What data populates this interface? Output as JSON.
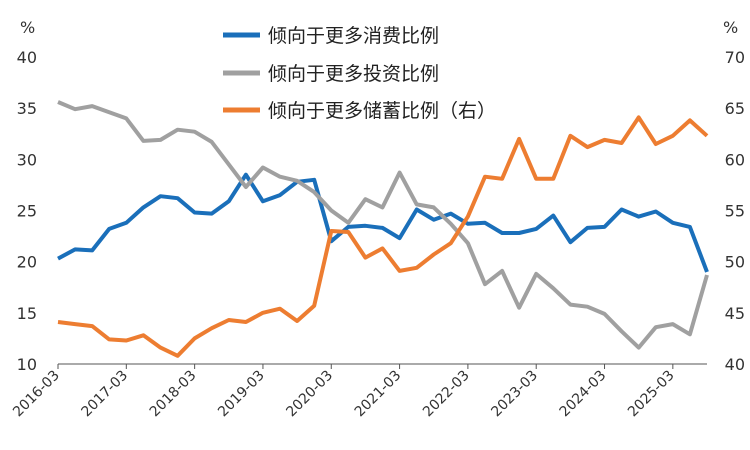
{
  "chart_data": {
    "type": "line",
    "title": "",
    "left_axis": {
      "unit": "%",
      "ylim": [
        10,
        40
      ],
      "ticks": [
        10,
        15,
        20,
        25,
        30,
        35,
        40
      ]
    },
    "right_axis": {
      "unit": "%",
      "ylim": [
        40,
        70
      ],
      "ticks": [
        40,
        45,
        50,
        55,
        60,
        65,
        70
      ]
    },
    "x_ticks": [
      "2016-03",
      "2017-03",
      "2018-03",
      "2019-03",
      "2020-03",
      "2021-03",
      "2022-03",
      "2023-03",
      "2024-03",
      "2025-03"
    ],
    "x_start": "2016-03",
    "x_end": "2025-12",
    "grid": false,
    "legend_position": "top-center",
    "series": [
      {
        "name": "倾向于更多消费比例",
        "axis": "left",
        "color": "#1a6fba",
        "values": [
          20.3,
          21.2,
          21.1,
          23.2,
          23.8,
          25.3,
          26.4,
          26.2,
          24.8,
          24.7,
          25.9,
          28.5,
          25.9,
          26.5,
          27.8,
          28.0,
          22.0,
          23.4,
          23.5,
          23.3,
          22.3,
          25.1,
          24.1,
          24.7,
          23.7,
          23.8,
          22.8,
          22.8,
          23.2,
          24.5,
          21.9,
          23.3,
          23.4,
          25.1,
          24.4,
          24.9,
          23.8,
          23.4,
          19.0
        ]
      },
      {
        "name": "倾向于更多投资比例",
        "axis": "left",
        "color": "#a0a0a0",
        "values": [
          35.6,
          34.9,
          35.2,
          34.6,
          34.0,
          31.8,
          31.9,
          32.9,
          32.7,
          31.7,
          29.5,
          27.3,
          29.2,
          28.3,
          27.9,
          26.8,
          25.0,
          23.8,
          26.1,
          25.3,
          28.7,
          25.6,
          25.3,
          23.7,
          21.8,
          17.8,
          19.1,
          15.5,
          18.8,
          17.4,
          15.8,
          15.6,
          14.9,
          13.2,
          11.6,
          13.6,
          13.9,
          12.9,
          18.7
        ]
      },
      {
        "name": "倾向于更多储蓄比例（右）",
        "axis": "right",
        "color": "#ed7d31",
        "values": [
          44.1,
          43.9,
          43.7,
          42.4,
          42.3,
          42.8,
          41.6,
          40.8,
          42.5,
          43.5,
          44.3,
          44.1,
          45.0,
          45.4,
          44.2,
          45.7,
          53.0,
          52.9,
          50.4,
          51.3,
          49.1,
          49.4,
          50.7,
          51.8,
          54.4,
          58.3,
          58.1,
          62.0,
          58.1,
          58.1,
          62.3,
          61.2,
          61.9,
          61.6,
          64.1,
          61.5,
          62.3,
          63.8,
          62.3
        ]
      }
    ]
  }
}
